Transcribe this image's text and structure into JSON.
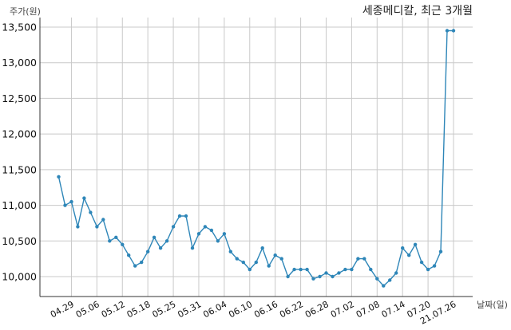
{
  "chart_data": {
    "type": "line",
    "title": "세종메디칼, 최근 3개월",
    "xlabel": "날짜(일)",
    "ylabel": "주가(원)",
    "ylim": [
      9700,
      13600
    ],
    "yticks": [
      10000,
      10500,
      11000,
      11500,
      12000,
      12500,
      13000,
      13500
    ],
    "ytick_labels": [
      "10,000",
      "10,500",
      "11,000",
      "11,500",
      "12,000",
      "12,500",
      "13,000",
      "13,500"
    ],
    "xtick_labels": [
      "04.29",
      "05.06",
      "05.12",
      "05.18",
      "05.25",
      "05.31",
      "06.04",
      "06.10",
      "06.16",
      "06.22",
      "06.28",
      "07.02",
      "07.08",
      "07.14",
      "07.20",
      "21.07.26"
    ],
    "xtick_index": [
      2,
      6,
      10,
      14,
      18,
      22,
      26,
      30,
      34,
      38,
      42,
      46,
      50,
      54,
      58,
      62
    ],
    "grid": true,
    "series": [
      {
        "color": "#2e86b8",
        "values": [
          11400,
          11000,
          11050,
          10700,
          11100,
          10900,
          10700,
          10800,
          10500,
          10550,
          10450,
          10300,
          10150,
          10200,
          10350,
          10550,
          10400,
          10500,
          10700,
          10850,
          10850,
          10400,
          10600,
          10700,
          10650,
          10500,
          10600,
          10350,
          10250,
          10200,
          10100,
          10200,
          10400,
          10150,
          10300,
          10250,
          10000,
          10100,
          10100,
          10100,
          9970,
          10000,
          10050,
          10000,
          10050,
          10100,
          10100,
          10250,
          10250,
          10100,
          9970,
          9870,
          9950,
          10050,
          10400,
          10300,
          10450,
          10200,
          10100,
          10150,
          10350,
          13450,
          13450
        ]
      }
    ]
  }
}
